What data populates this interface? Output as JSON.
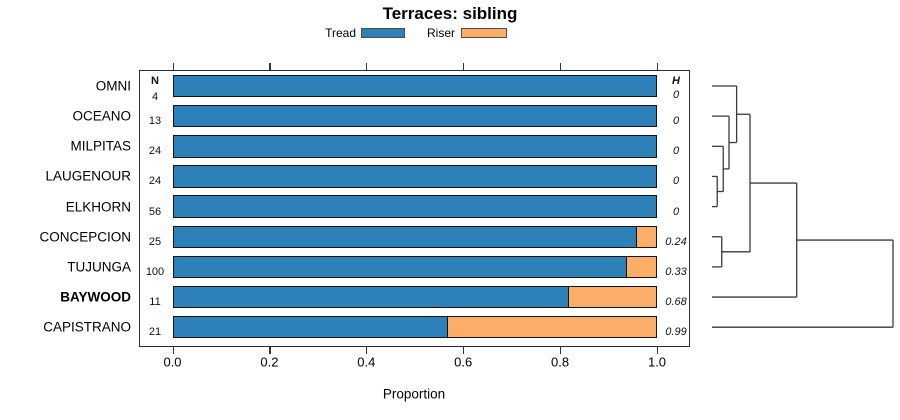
{
  "title": "Terraces: sibling",
  "legend": {
    "items": [
      {
        "label": "Tread",
        "color": "#2e80b8"
      },
      {
        "label": "Riser",
        "color": "#fcad68"
      }
    ]
  },
  "columns": {
    "n_header": "N",
    "h_header": "H"
  },
  "axis": {
    "label": "Proportion"
  },
  "chart_data": {
    "type": "bar",
    "orientation": "horizontal",
    "stacked": true,
    "title": "Terraces: sibling",
    "xlabel": "Proportion",
    "xlim": [
      0,
      1
    ],
    "x_ticks": [
      0,
      0.2,
      0.4,
      0.6,
      0.8,
      1.0
    ],
    "x_tick_labels": [
      "0.0",
      "0.2",
      "0.4",
      "0.6",
      "0.8",
      "1.0"
    ],
    "grid": false,
    "legend_position": "top",
    "categories": [
      "OMNI",
      "OCEANO",
      "MILPITAS",
      "LAUGENOUR",
      "ELKHORN",
      "CONCEPCION",
      "TUJUNGA",
      "BAYWOOD",
      "CAPISTRANO"
    ],
    "emphasized_category": "BAYWOOD",
    "series": [
      {
        "name": "Tread",
        "color": "#2e80b8",
        "values": [
          1.0,
          1.0,
          1.0,
          1.0,
          1.0,
          0.96,
          0.94,
          0.82,
          0.57
        ]
      },
      {
        "name": "Riser",
        "color": "#fcad68",
        "values": [
          0.0,
          0.0,
          0.0,
          0.0,
          0.0,
          0.04,
          0.06,
          0.18,
          0.43
        ]
      }
    ],
    "N": [
      4,
      13,
      24,
      24,
      56,
      25,
      100,
      11,
      21
    ],
    "H": [
      "0",
      "0",
      "0",
      "0",
      "0",
      "0.24",
      "0.33",
      "0.68",
      "0.99"
    ],
    "dendrogram": {
      "leaves": [
        "OMNI",
        "OCEANO",
        "MILPITAS",
        "LAUGENOUR",
        "ELKHORN",
        "CONCEPCION",
        "TUJUNGA",
        "BAYWOOD",
        "CAPISTRANO"
      ],
      "merges": [
        {
          "a": "L3",
          "b": "L4",
          "h": 0.029
        },
        {
          "a": "L5",
          "b": "L6",
          "h": 0.054
        },
        {
          "a": "L2",
          "b": "M0",
          "h": 0.062
        },
        {
          "a": "L1",
          "b": "M2",
          "h": 0.094
        },
        {
          "a": "L0",
          "b": "M3",
          "h": 0.136
        },
        {
          "a": "M4",
          "b": "M1",
          "h": 0.21
        },
        {
          "a": "M5",
          "b": "L7",
          "h": 0.468
        },
        {
          "a": "M6",
          "b": "L8",
          "h": 1.0
        }
      ]
    }
  }
}
